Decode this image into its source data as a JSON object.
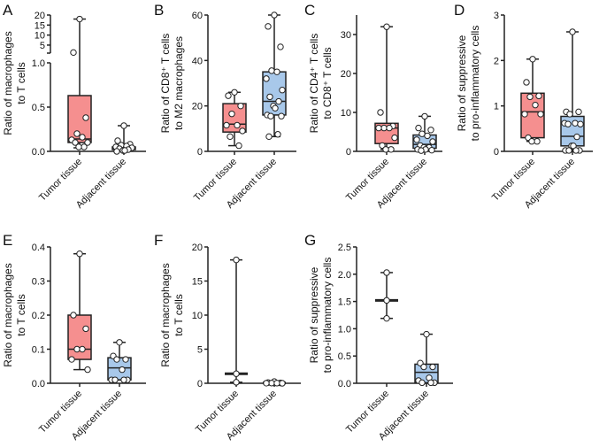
{
  "colors": {
    "tumor": "#f58f8f",
    "adjacent": "#a8c8ea",
    "stroke": "#222222",
    "point_fill": "#ffffff"
  },
  "chart_data": [
    {
      "panel": "A",
      "type": "box",
      "ylabel_lines": [
        "Ratio of macrophages",
        "to T cells"
      ],
      "categories": [
        "Tumor tissue",
        "Adjacent tissue"
      ],
      "broken_axis": true,
      "yticks": [
        "0.0",
        "0.5",
        "1.0",
        "5",
        "10",
        "15",
        "20"
      ],
      "ytick_values": [
        0,
        0.5,
        1.0,
        5,
        10,
        15,
        20
      ],
      "series": [
        {
          "name": "Tumor tissue",
          "min": 0.04,
          "q1": 0.1,
          "median": 0.14,
          "q3": 0.63,
          "max": 18,
          "points": [
            18,
            1.3,
            0.38,
            0.2,
            0.16,
            0.13,
            0.1,
            0.1,
            0.05,
            0.05
          ]
        },
        {
          "name": "Adjacent tissue",
          "min": 0.0,
          "q1": 0.02,
          "median": 0.04,
          "q3": 0.05,
          "max": 0.29,
          "points": [
            0.29,
            0.12,
            0.08,
            0.07,
            0.06,
            0.05,
            0.04,
            0.03,
            0.02,
            0.01,
            0.01,
            0.0
          ]
        }
      ]
    },
    {
      "panel": "B",
      "type": "box",
      "ylabel_lines": [
        "Ratio of CD8⁺ T cells",
        "to M2 macrophages"
      ],
      "categories": [
        "Tumor tissue",
        "Adjacent tissue"
      ],
      "ylim": [
        0,
        60
      ],
      "yticks": [
        "0",
        "20",
        "40",
        "60"
      ],
      "ytick_values": [
        0,
        20,
        40,
        60
      ],
      "series": [
        {
          "name": "Tumor tissue",
          "min": 2.5,
          "q1": 8.5,
          "median": 12,
          "q3": 21,
          "max": 26,
          "points": [
            26,
            24.5,
            20,
            16.5,
            11.5,
            11.5,
            9,
            6.5,
            2.5
          ]
        },
        {
          "name": "Adjacent tissue",
          "min": 6.5,
          "q1": 16,
          "median": 22,
          "q3": 35,
          "max": 60,
          "points": [
            60,
            55,
            46,
            35.5,
            35,
            32,
            27,
            24,
            22,
            20,
            19,
            16,
            15.5,
            15.5,
            7.5,
            6.5
          ]
        }
      ]
    },
    {
      "panel": "C",
      "type": "box",
      "ylabel_lines": [
        "Ratio of CD4⁺ T cells",
        "to CD8⁺ T cells"
      ],
      "categories": [
        "Tumor tissue",
        "Adjacent tissue"
      ],
      "ylim": [
        0,
        35
      ],
      "yticks": [
        "0",
        "10",
        "20",
        "30"
      ],
      "ytick_values": [
        0,
        10,
        20,
        30
      ],
      "series": [
        {
          "name": "Tumor tissue",
          "min": 0.5,
          "q1": 2,
          "median": 6,
          "q3": 7.2,
          "max": 32,
          "points": [
            32,
            10,
            6.5,
            6,
            6,
            6,
            3.5,
            1.5,
            0.5,
            0.5
          ]
        },
        {
          "name": "Adjacent tissue",
          "min": 0.2,
          "q1": 0.8,
          "median": 1.8,
          "q3": 4.2,
          "max": 9,
          "points": [
            9,
            6,
            5.5,
            4.5,
            4,
            3,
            2.5,
            1.5,
            1,
            1,
            0.5,
            0.5,
            0.3,
            0.2
          ]
        }
      ]
    },
    {
      "panel": "D",
      "type": "box",
      "ylabel_lines": [
        "Ratio of suppressive",
        "to pro-inflammatory cells"
      ],
      "categories": [
        "Tumor tissue",
        "Adjacent tissue"
      ],
      "ylim": [
        0,
        3
      ],
      "yticks": [
        "0",
        "1",
        "2",
        "3"
      ],
      "ytick_values": [
        0,
        1,
        2,
        3
      ],
      "series": [
        {
          "name": "Tumor tissue",
          "min": 0.22,
          "q1": 0.3,
          "median": 0.87,
          "q3": 1.28,
          "max": 2.03,
          "points": [
            2.03,
            1.52,
            1.22,
            1.2,
            1.02,
            0.82,
            0.82,
            0.3,
            0.22,
            0.22
          ]
        },
        {
          "name": "Adjacent tissue",
          "min": 0.02,
          "q1": 0.12,
          "median": 0.33,
          "q3": 0.77,
          "max": 2.63,
          "points": [
            2.63,
            0.87,
            0.87,
            0.82,
            0.62,
            0.62,
            0.6,
            0.6,
            0.32,
            0.12,
            0.12,
            0.02,
            0.02,
            0.02,
            0.02
          ]
        }
      ]
    },
    {
      "panel": "E",
      "type": "box",
      "ylabel_lines": [
        "Ratio of macrophages",
        "to T cells"
      ],
      "categories": [
        "Tumor tissue",
        "Adjacent tissue"
      ],
      "ylim": [
        0,
        0.4
      ],
      "yticks": [
        "0.0",
        "0.1",
        "0.2",
        "0.3",
        "0.4"
      ],
      "ytick_values": [
        0,
        0.1,
        0.2,
        0.3,
        0.4
      ],
      "series": [
        {
          "name": "Tumor tissue",
          "min": 0.04,
          "q1": 0.07,
          "median": 0.1,
          "q3": 0.2,
          "max": 0.38,
          "points": [
            0.38,
            0.2,
            0.16,
            0.1,
            0.1,
            0.07,
            0.04
          ]
        },
        {
          "name": "Adjacent tissue",
          "min": 0.01,
          "q1": 0.01,
          "median": 0.045,
          "q3": 0.075,
          "max": 0.12,
          "points": [
            0.12,
            0.08,
            0.07,
            0.07,
            0.04,
            0.01,
            0.01,
            0.01,
            0.01
          ]
        }
      ]
    },
    {
      "panel": "F",
      "type": "box",
      "ylabel_lines": [
        "Ratio of macrophages",
        "to T cells"
      ],
      "categories": [
        "Tumor tissue",
        "Adjacent tissue"
      ],
      "ylim": [
        0,
        20
      ],
      "yticks": [
        "0",
        "5",
        "10",
        "15",
        "20"
      ],
      "ytick_values": [
        0,
        5,
        10,
        15,
        20
      ],
      "series": [
        {
          "name": "Tumor tissue",
          "min": 0.15,
          "q1": null,
          "median": 1.4,
          "q3": null,
          "max": 18.1,
          "points": [
            18.1,
            1.4,
            0.15
          ]
        },
        {
          "name": "Adjacent tissue",
          "min": 0.0,
          "q1": null,
          "median": 0.05,
          "q3": null,
          "max": 0.25,
          "points": [
            0.25,
            0.1,
            0.05,
            0.03,
            0.02,
            0.01,
            0.0
          ]
        }
      ]
    },
    {
      "panel": "G",
      "type": "box",
      "ylabel_lines": [
        "Ratio of suppressive",
        "to pro-inflammatory cells"
      ],
      "categories": [
        "Tumor tissue",
        "Adjacent tissue"
      ],
      "ylim": [
        0,
        2.5
      ],
      "yticks": [
        "0.0",
        "0.5",
        "1.0",
        "1.5",
        "2.0",
        "2.5"
      ],
      "ytick_values": [
        0,
        0.5,
        1.0,
        1.5,
        2.0,
        2.5
      ],
      "series": [
        {
          "name": "Tumor tissue",
          "min": 1.19,
          "q1": null,
          "median": 1.52,
          "q3": null,
          "max": 2.03,
          "points": [
            2.03,
            1.52,
            1.19
          ]
        },
        {
          "name": "Adjacent tissue",
          "min": 0.01,
          "q1": 0.01,
          "median": 0.2,
          "q3": 0.35,
          "max": 0.9,
          "points": [
            0.9,
            0.37,
            0.3,
            0.3,
            0.1,
            0.05,
            0.01,
            0.01,
            0.01
          ]
        }
      ]
    }
  ]
}
